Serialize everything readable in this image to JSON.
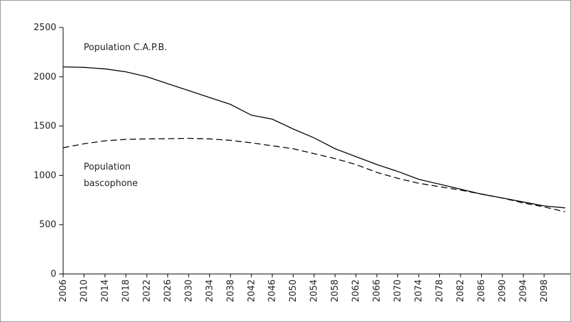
{
  "chart_data": {
    "type": "line",
    "x": [
      2006,
      2010,
      2014,
      2018,
      2022,
      2026,
      2030,
      2034,
      2038,
      2042,
      2046,
      2050,
      2054,
      2058,
      2062,
      2066,
      2070,
      2074,
      2078,
      2082,
      2086,
      2090,
      2094,
      2098,
      2102
    ],
    "series": [
      {
        "name": "Population C.A.P.B.",
        "color": "#000000",
        "dash": false,
        "values": [
          2100,
          2095,
          2080,
          2050,
          2000,
          1930,
          1860,
          1790,
          1720,
          1610,
          1570,
          1470,
          1380,
          1270,
          1190,
          1110,
          1040,
          960,
          910,
          860,
          810,
          770,
          730,
          690,
          670
        ]
      },
      {
        "name": "Population\nbascophone",
        "color": "#000000",
        "dash": true,
        "values": [
          1280,
          1320,
          1350,
          1365,
          1370,
          1372,
          1375,
          1370,
          1355,
          1330,
          1300,
          1270,
          1220,
          1170,
          1110,
          1030,
          970,
          920,
          885,
          850,
          810,
          770,
          720,
          680,
          630
        ]
      }
    ],
    "xlim": [
      2006,
      2103
    ],
    "xticks": [
      2006,
      2010,
      2014,
      2018,
      2022,
      2026,
      2030,
      2034,
      2038,
      2042,
      2046,
      2050,
      2054,
      2058,
      2062,
      2066,
      2070,
      2074,
      2078,
      2082,
      2086,
      2090,
      2094,
      2098
    ],
    "ylim": [
      0,
      2500
    ],
    "yticks": [
      0,
      500,
      1000,
      1500,
      2000,
      2500
    ]
  }
}
